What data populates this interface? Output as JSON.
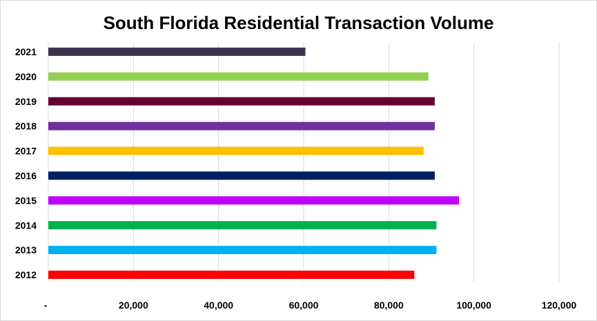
{
  "chart_data": {
    "type": "bar",
    "orientation": "horizontal",
    "title": "South Florida Residential Transaction Volume",
    "xlabel": "",
    "ylabel": "",
    "xlim": [
      0,
      120000
    ],
    "grid": true,
    "legend": "none",
    "x_tick_values": [
      0,
      20000,
      40000,
      60000,
      80000,
      100000,
      120000
    ],
    "x_tick_labels": [
      "-",
      "20,000",
      "40,000",
      "60,000",
      "80,000",
      "100,000",
      "120,000"
    ],
    "categories": [
      "2012",
      "2013",
      "2014",
      "2015",
      "2016",
      "2017",
      "2018",
      "2019",
      "2020",
      "2021"
    ],
    "values": [
      86000,
      91200,
      91200,
      96500,
      90800,
      88200,
      90800,
      90800,
      89300,
      60400
    ],
    "colors": [
      "#ff0000",
      "#00b0f0",
      "#00b050",
      "#c000ff",
      "#002060",
      "#ffc000",
      "#7030a0",
      "#660033",
      "#92d050",
      "#403151"
    ]
  }
}
